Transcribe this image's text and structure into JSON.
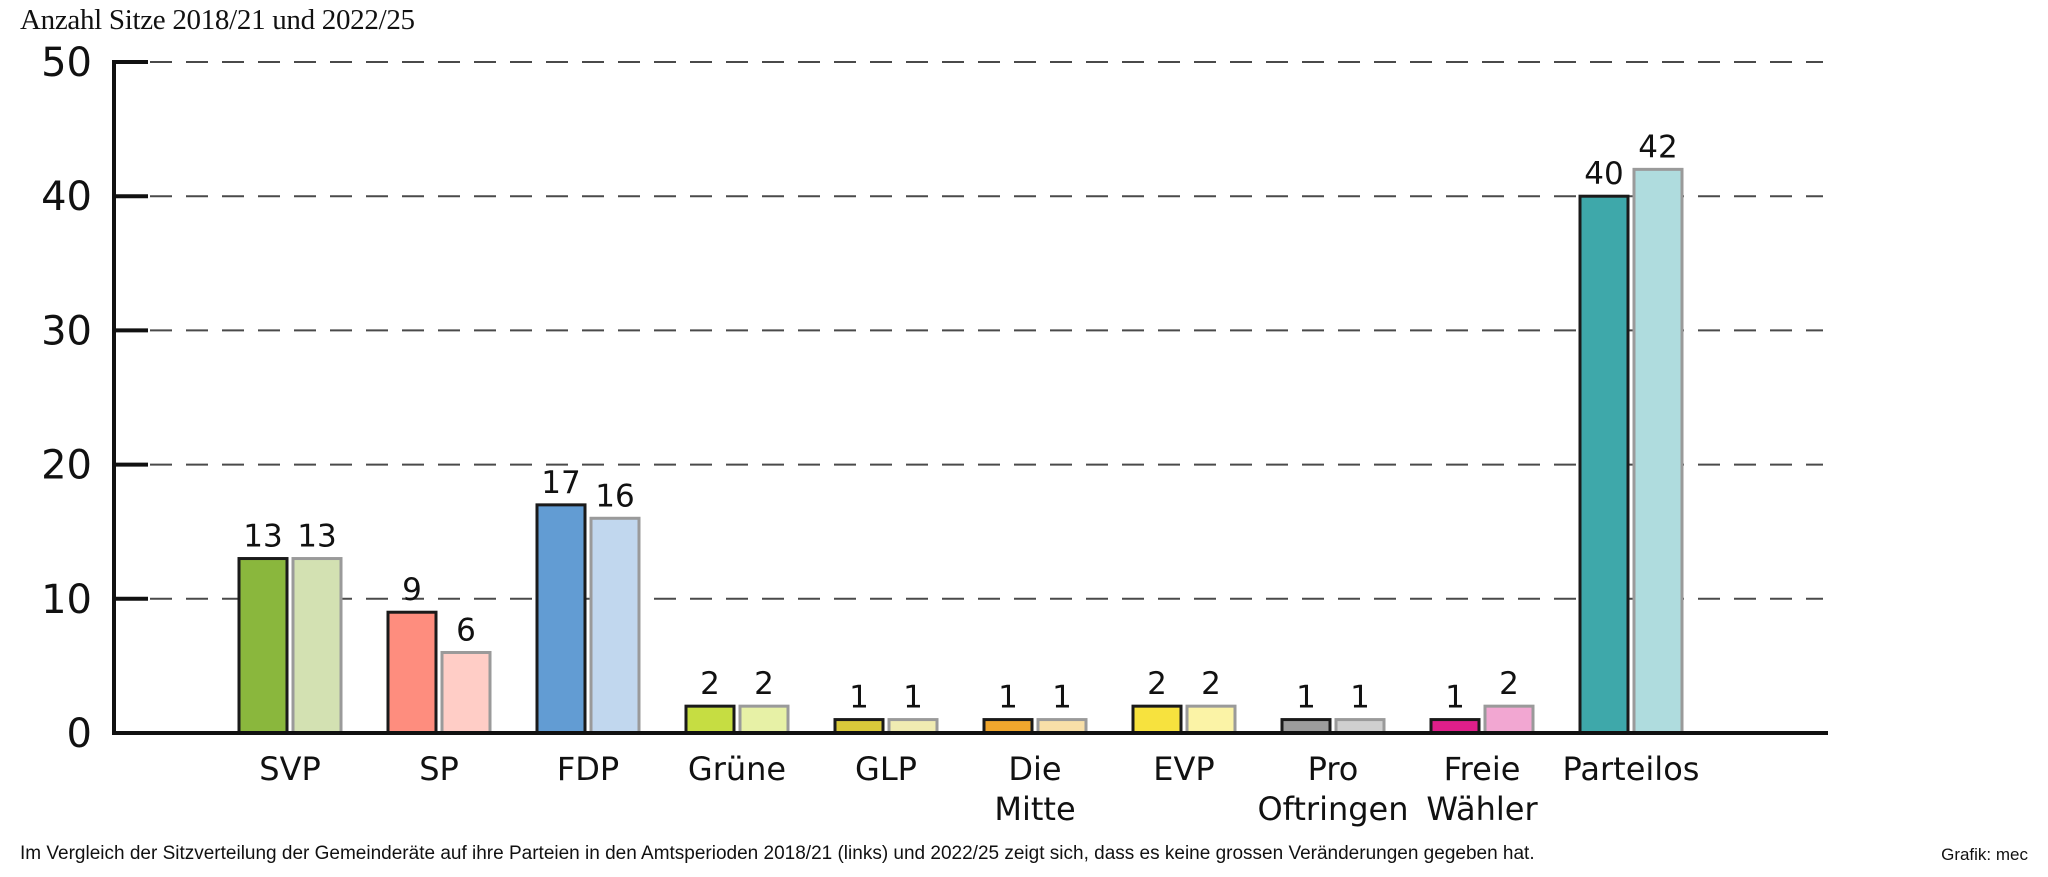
{
  "title": "Anzahl Sitze 2018/21 und 2022/25",
  "caption": "Im Vergleich der Sitzverteilung der Gemeinderäte auf ihre Parteien in den Amtsperioden 2018/21 (links) und 2022/25 zeigt sich, dass es keine grossen Veränderungen gegeben hat.",
  "credit": "Grafik: mec",
  "chart_data": {
    "type": "bar",
    "title": "Anzahl Sitze 2018/21 und 2022/25",
    "xlabel": "",
    "ylabel": "",
    "ylim": [
      0,
      50
    ],
    "yticks": [
      0,
      10,
      20,
      30,
      40,
      50
    ],
    "grid": true,
    "legend": "none",
    "categories": [
      [
        "SVP"
      ],
      [
        "SP"
      ],
      [
        "FDP"
      ],
      [
        "Grüne"
      ],
      [
        "GLP"
      ],
      [
        "Die",
        "Mitte"
      ],
      [
        "EVP"
      ],
      [
        "Pro",
        "Oftringen"
      ],
      [
        "Freie",
        "Wähler"
      ],
      [
        "Parteilos"
      ]
    ],
    "series": [
      {
        "values": [
          13,
          9,
          17,
          2,
          1,
          1,
          2,
          1,
          1,
          40
        ]
      },
      {
        "values": [
          13,
          6,
          16,
          2,
          1,
          1,
          2,
          1,
          2,
          42
        ]
      }
    ],
    "colors_2018": [
      "#8ab73d",
      "#fe8d7e",
      "#629cd3",
      "#c6dd42",
      "#d9c93a",
      "#f0a62d",
      "#f7e23e",
      "#9c9c9c",
      "#df1f8a",
      "#3ea8aa"
    ],
    "colors_2022": [
      "#d3e1b2",
      "#ffcdc6",
      "#c1d7ee",
      "#e7f1a6",
      "#f0ebb2",
      "#f8dfa8",
      "#fbf3a6",
      "#cfcfcf",
      "#f2a7d2",
      "#afdcde"
    ]
  }
}
